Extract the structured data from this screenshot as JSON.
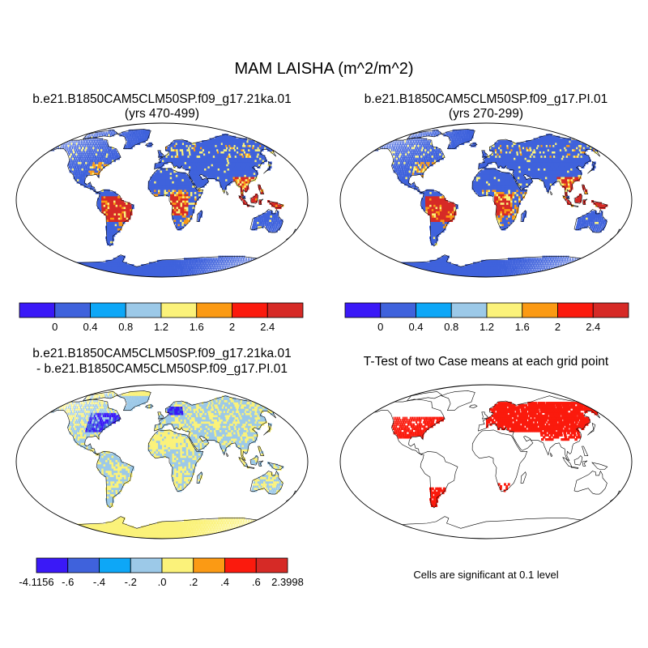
{
  "title": "MAM LAISHA (m^2/m^2)",
  "panels": [
    {
      "id": "case",
      "title_line1": "b.e21.B1850CAM5CLM50SP.f09_g17.21ka.01",
      "title_line2": "(yrs 470-499)"
    },
    {
      "id": "control",
      "title_line1": "b.e21.B1850CAM5CLM50SP.f09_g17.PI.01",
      "title_line2": "(yrs 270-299)"
    },
    {
      "id": "difference",
      "title_line1": "b.e21.B1850CAM5CLM50SP.f09_g17.21ka.01",
      "title_line2": "- b.e21.B1850CAM5CLM50SP.f09_g17.PI.01"
    },
    {
      "id": "ttest",
      "title_line1": "T-Test of two Case means at each grid point"
    }
  ],
  "colorbars": {
    "abs": {
      "colors": [
        "#3a19f7",
        "#3f62dc",
        "#0da7f7",
        "#9cc9e8",
        "#fbf27a",
        "#fb9a14",
        "#fb1a0d",
        "#d62a26"
      ],
      "labels": [
        "0",
        "0.4",
        "0.8",
        "1.2",
        "1.6",
        "2",
        "2.4"
      ]
    },
    "diff": {
      "colors": [
        "#3a19f7",
        "#3f62dc",
        "#0da7f7",
        "#9cc9e8",
        "#fbf27a",
        "#fb9a14",
        "#fb1a0d",
        "#d62a26"
      ],
      "labels": [
        "-4.1156",
        "-.6",
        "-.4",
        "-.2",
        ".0",
        ".2",
        ".4",
        ".6",
        "2.3998"
      ]
    }
  },
  "significance_note": "Cells are significant at 0.1 level",
  "map_colors": {
    "ocean": "#ffffff",
    "land_base": "#3f62dc",
    "tropics": "#d62a26",
    "mid": "#fb9a14",
    "low": "#fbf27a",
    "diff_base": "#9cc9e8",
    "diff_pos": "#fbf27a",
    "diff_neg": "#3a19f7",
    "significant": "#fb1a0d",
    "coast": "#000000"
  }
}
